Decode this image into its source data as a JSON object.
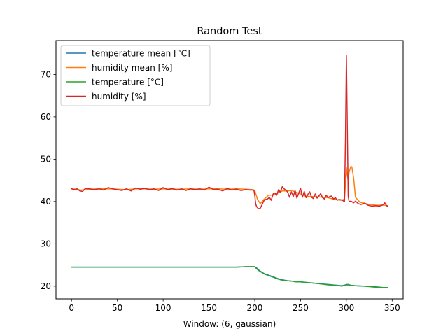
{
  "chart_data": {
    "type": "line",
    "title": "Random Test",
    "xlabel": "Window: (6, gaussian)",
    "ylabel": "",
    "xlim": [
      -17,
      362
    ],
    "ylim": [
      17,
      78
    ],
    "xticks": [
      0,
      50,
      100,
      150,
      200,
      250,
      300,
      350
    ],
    "yticks": [
      20,
      30,
      40,
      50,
      60,
      70
    ],
    "grid": false,
    "legend_position": "top-left",
    "series": [
      {
        "name": "temperature mean [°C]",
        "color": "#1f77b4",
        "x": [
          0,
          20,
          50,
          100,
          150,
          180,
          190,
          200,
          202,
          205,
          210,
          215,
          220,
          225,
          230,
          235,
          240,
          245,
          250,
          260,
          270,
          280,
          290,
          295,
          300,
          302,
          305,
          310,
          320,
          330,
          340,
          345
        ],
        "y": [
          24.5,
          24.5,
          24.5,
          24.5,
          24.5,
          24.5,
          24.6,
          24.6,
          24.3,
          23.7,
          23.0,
          22.6,
          22.2,
          21.8,
          21.5,
          21.3,
          21.2,
          21.1,
          21.0,
          20.8,
          20.6,
          20.4,
          20.2,
          20.1,
          20.3,
          20.3,
          20.2,
          20.1,
          20.0,
          19.9,
          19.7,
          19.7
        ]
      },
      {
        "name": "humidity mean [%]",
        "color": "#ff7f0e",
        "x": [
          0,
          5,
          10,
          20,
          30,
          40,
          50,
          60,
          70,
          80,
          90,
          100,
          110,
          120,
          130,
          140,
          150,
          160,
          170,
          180,
          190,
          198,
          200,
          203,
          206,
          210,
          215,
          220,
          225,
          230,
          235,
          240,
          245,
          250,
          255,
          260,
          265,
          270,
          275,
          280,
          285,
          290,
          295,
          298,
          299,
          300,
          301,
          302,
          303,
          305,
          306,
          308,
          310,
          315,
          320,
          325,
          330,
          335,
          340,
          345
        ],
        "y": [
          43.0,
          42.9,
          42.7,
          42.9,
          43.0,
          43.0,
          42.9,
          42.8,
          43.0,
          43.0,
          42.9,
          43.0,
          42.9,
          42.9,
          43.0,
          42.9,
          43.0,
          43.0,
          42.9,
          43.0,
          42.9,
          42.8,
          42.6,
          40.5,
          39.5,
          40.5,
          41.5,
          41.5,
          42.0,
          42.5,
          42.5,
          42.6,
          42.2,
          41.8,
          41.3,
          41.2,
          41.2,
          41.1,
          41.0,
          40.9,
          40.6,
          40.4,
          40.3,
          40.6,
          44.0,
          48.0,
          46.0,
          45.0,
          47.0,
          48.3,
          48.2,
          45.5,
          41.0,
          39.8,
          39.6,
          39.3,
          39.2,
          39.1,
          39.2,
          39.0
        ]
      },
      {
        "name": "temperature [°C]",
        "color": "#2ca02c",
        "x": [
          0,
          20,
          50,
          100,
          150,
          180,
          190,
          200,
          202,
          205,
          210,
          215,
          220,
          225,
          230,
          235,
          240,
          245,
          250,
          260,
          270,
          280,
          290,
          295,
          300,
          302,
          305,
          310,
          320,
          330,
          340,
          345
        ],
        "y": [
          24.5,
          24.5,
          24.5,
          24.5,
          24.5,
          24.5,
          24.6,
          24.6,
          24.1,
          23.6,
          22.9,
          22.5,
          22.1,
          21.7,
          21.4,
          21.3,
          21.2,
          21.0,
          21.0,
          20.8,
          20.6,
          20.3,
          20.2,
          20.0,
          20.4,
          20.4,
          20.2,
          20.1,
          20.0,
          19.8,
          19.7,
          19.7
        ]
      },
      {
        "name": "humidity [%]",
        "color": "#d62728",
        "x": [
          0,
          3,
          6,
          9,
          12,
          15,
          20,
          25,
          30,
          35,
          40,
          45,
          50,
          55,
          60,
          65,
          70,
          75,
          80,
          85,
          90,
          95,
          100,
          105,
          110,
          115,
          120,
          125,
          130,
          135,
          140,
          145,
          150,
          155,
          160,
          165,
          170,
          175,
          180,
          185,
          190,
          195,
          199,
          200,
          201,
          202,
          204,
          206,
          208,
          210,
          212,
          214,
          216,
          218,
          220,
          222,
          224,
          226,
          228,
          230,
          232,
          234,
          236,
          238,
          240,
          242,
          244,
          246,
          248,
          250,
          252,
          254,
          256,
          258,
          260,
          262,
          264,
          266,
          268,
          270,
          272,
          274,
          276,
          278,
          280,
          282,
          284,
          286,
          288,
          290,
          292,
          294,
          296,
          297,
          298,
          299,
          300,
          301,
          302,
          303,
          305,
          308,
          310,
          313,
          316,
          320,
          324,
          328,
          332,
          336,
          340,
          342,
          344,
          345
        ],
        "y": [
          43.0,
          42.8,
          43.0,
          42.5,
          42.4,
          43.1,
          43.0,
          42.8,
          43.0,
          42.7,
          43.3,
          43.0,
          42.8,
          42.6,
          43.0,
          42.5,
          43.2,
          42.9,
          43.1,
          42.8,
          43.0,
          42.6,
          43.3,
          42.8,
          43.1,
          42.7,
          43.0,
          42.6,
          43.0,
          42.8,
          43.0,
          42.7,
          43.4,
          42.8,
          42.9,
          42.5,
          43.1,
          42.7,
          42.9,
          42.6,
          42.8,
          42.7,
          42.7,
          41.5,
          39.5,
          38.8,
          38.3,
          38.4,
          39.3,
          40.2,
          40.5,
          40.6,
          41.0,
          40.3,
          41.8,
          42.0,
          41.5,
          42.8,
          42.2,
          43.5,
          43.0,
          42.7,
          42.2,
          41.0,
          42.3,
          41.2,
          42.6,
          40.8,
          42.0,
          43.1,
          41.0,
          42.4,
          40.9,
          41.7,
          42.3,
          41.0,
          40.7,
          41.8,
          40.8,
          41.3,
          41.9,
          40.9,
          40.6,
          41.5,
          40.9,
          41.2,
          41.3,
          40.6,
          40.9,
          40.3,
          40.5,
          40.4,
          40.3,
          40.1,
          40.0,
          55.0,
          74.5,
          58.0,
          41.2,
          40.0,
          40.1,
          39.7,
          40.1,
          39.5,
          39.3,
          39.6,
          39.1,
          38.9,
          39.0,
          38.9,
          39.2,
          39.7,
          39.0,
          38.9
        ]
      }
    ]
  }
}
